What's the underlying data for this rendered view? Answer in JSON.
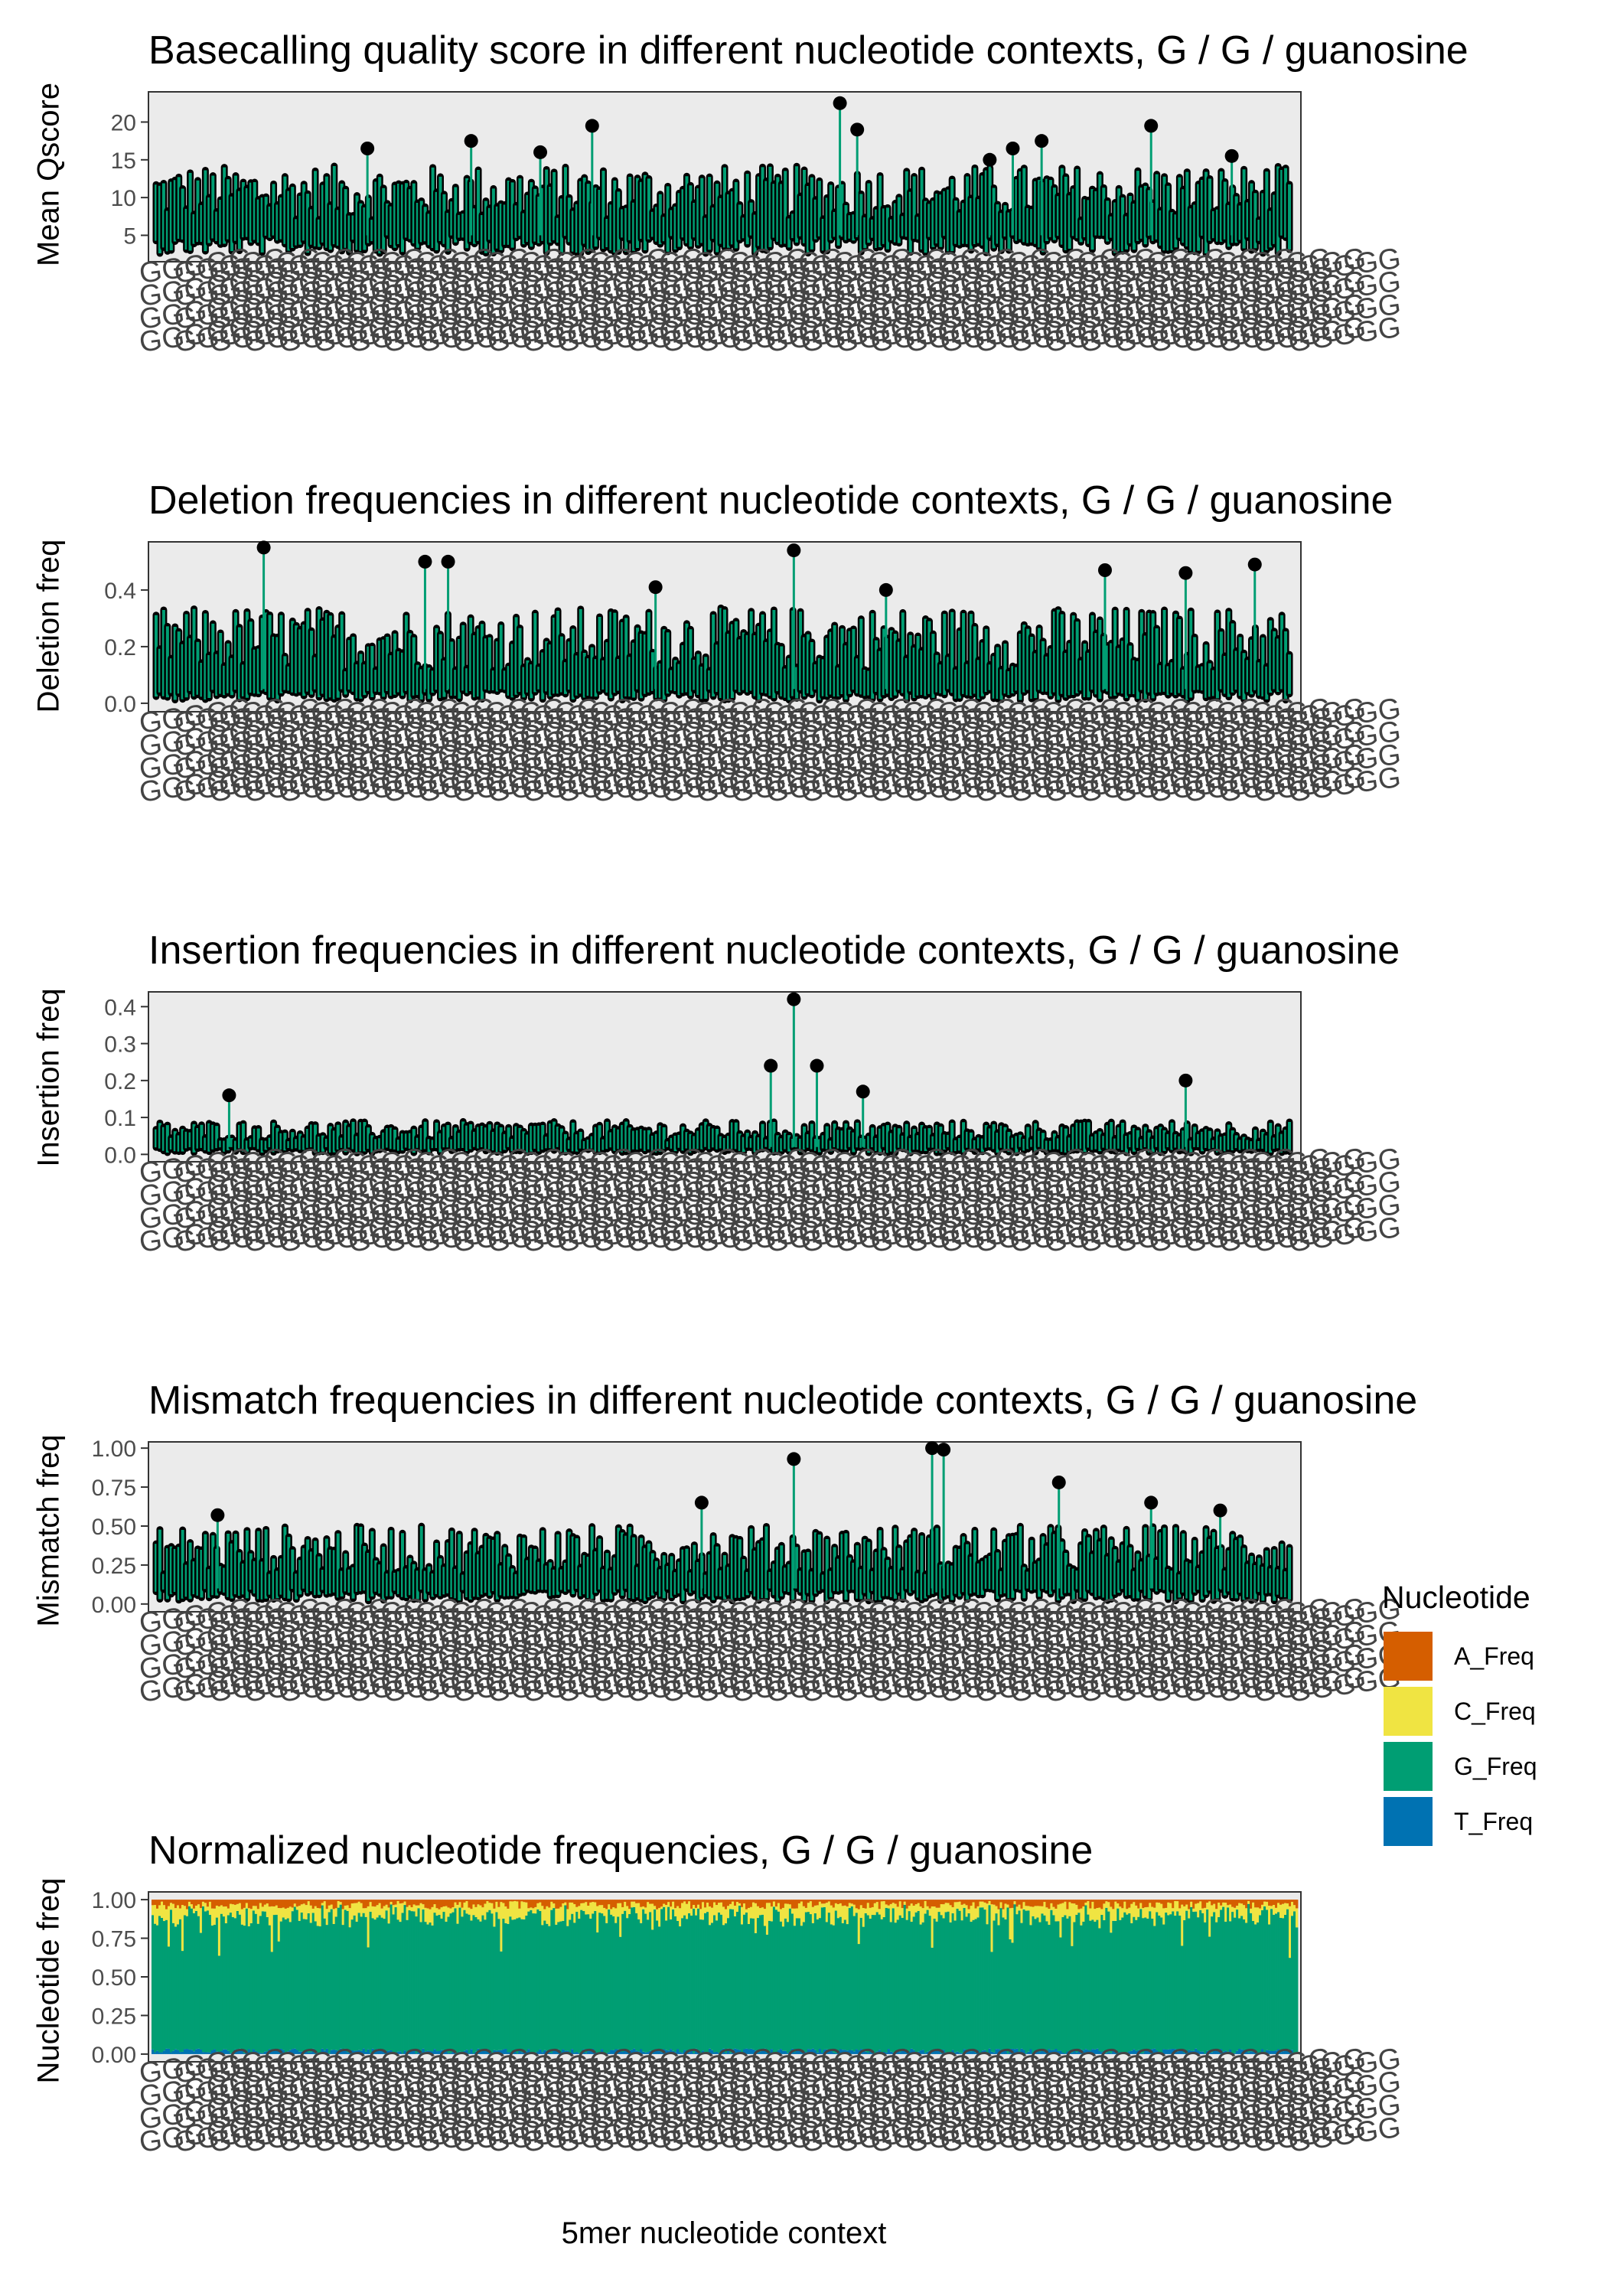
{
  "chart_data": [
    {
      "type": "line",
      "title": "Basecalling quality score in different nucleotide contexts, G / G / guanosine",
      "ylabel": "Mean Qscore",
      "xlabel": "",
      "ylim": [
        1.5,
        24
      ],
      "yticks": [
        5,
        10,
        15,
        20
      ],
      "ytick_labels": [
        "5",
        "10",
        "15",
        "20"
      ],
      "grid": false,
      "stats": {
        "baseline": 5,
        "typical_peak": 13,
        "max_peak": 23,
        "min": 2
      },
      "outliers": [
        {
          "x": 0.19,
          "y": 16.5
        },
        {
          "x": 0.28,
          "y": 17.5
        },
        {
          "x": 0.34,
          "y": 16
        },
        {
          "x": 0.385,
          "y": 19.5
        },
        {
          "x": 0.6,
          "y": 22.5
        },
        {
          "x": 0.615,
          "y": 19
        },
        {
          "x": 0.73,
          "y": 15
        },
        {
          "x": 0.75,
          "y": 16.5
        },
        {
          "x": 0.775,
          "y": 17.5
        },
        {
          "x": 0.87,
          "y": 19.5
        },
        {
          "x": 0.94,
          "y": 15.5
        }
      ]
    },
    {
      "type": "line",
      "title": "Deletion frequencies in different nucleotide contexts, G / G / guanosine",
      "ylabel": "Deletion freq",
      "xlabel": "",
      "ylim": [
        -0.03,
        0.57
      ],
      "yticks": [
        0.0,
        0.2,
        0.4
      ],
      "ytick_labels": [
        "0.0",
        "0.2",
        "0.4"
      ],
      "grid": false,
      "stats": {
        "baseline": 0.05,
        "typical_peak": 0.3,
        "max_peak": 0.55,
        "min": 0.0
      },
      "outliers": [
        {
          "x": 0.1,
          "y": 0.55
        },
        {
          "x": 0.24,
          "y": 0.5
        },
        {
          "x": 0.26,
          "y": 0.5
        },
        {
          "x": 0.44,
          "y": 0.41
        },
        {
          "x": 0.56,
          "y": 0.54
        },
        {
          "x": 0.64,
          "y": 0.4
        },
        {
          "x": 0.83,
          "y": 0.47
        },
        {
          "x": 0.9,
          "y": 0.46
        },
        {
          "x": 0.96,
          "y": 0.49
        }
      ]
    },
    {
      "type": "line",
      "title": "Insertion frequencies in different nucleotide contexts, G / G / guanosine",
      "ylabel": "Insertion freq",
      "xlabel": "",
      "ylim": [
        -0.02,
        0.44
      ],
      "yticks": [
        0.0,
        0.1,
        0.2,
        0.3,
        0.4
      ],
      "ytick_labels": [
        "0.0",
        "0.1",
        "0.2",
        "0.3",
        "0.4"
      ],
      "grid": false,
      "stats": {
        "baseline": 0.02,
        "typical_peak": 0.08,
        "max_peak": 0.42,
        "min": 0.0
      },
      "outliers": [
        {
          "x": 0.07,
          "y": 0.16
        },
        {
          "x": 0.54,
          "y": 0.24
        },
        {
          "x": 0.56,
          "y": 0.42
        },
        {
          "x": 0.58,
          "y": 0.24
        },
        {
          "x": 0.62,
          "y": 0.17
        },
        {
          "x": 0.9,
          "y": 0.2
        }
      ]
    },
    {
      "type": "line",
      "title": "Mismatch frequencies in different nucleotide contexts, G / G / guanosine",
      "ylabel": "Mismatch freq",
      "xlabel": "",
      "ylim": [
        -0.05,
        1.04
      ],
      "yticks": [
        0.0,
        0.25,
        0.5,
        0.75,
        1.0
      ],
      "ytick_labels": [
        "0.00",
        "0.25",
        "0.50",
        "0.75",
        "1.00"
      ],
      "grid": false,
      "stats": {
        "baseline": 0.1,
        "typical_peak": 0.45,
        "max_peak": 1.0,
        "min": 0.0
      },
      "outliers": [
        {
          "x": 0.06,
          "y": 0.57
        },
        {
          "x": 0.48,
          "y": 0.65
        },
        {
          "x": 0.56,
          "y": 0.93
        },
        {
          "x": 0.68,
          "y": 1.0
        },
        {
          "x": 0.69,
          "y": 0.99
        },
        {
          "x": 0.79,
          "y": 0.78
        },
        {
          "x": 0.87,
          "y": 0.65
        },
        {
          "x": 0.93,
          "y": 0.6
        }
      ]
    },
    {
      "type": "bar",
      "stacked": true,
      "title": "Normalized nucleotide frequencies, G / G / guanosine",
      "ylabel": "Nucleotide freq",
      "xlabel": "5mer nucleotide context",
      "ylim": [
        -0.05,
        1.05
      ],
      "yticks": [
        0.0,
        0.25,
        0.5,
        0.75,
        1.0
      ],
      "ytick_labels": [
        "0.00",
        "0.25",
        "0.50",
        "0.75",
        "1.00"
      ],
      "grid": false,
      "series_order": [
        "T_Freq",
        "G_Freq",
        "C_Freq",
        "A_Freq"
      ],
      "typical_fractions": {
        "A_Freq": 0.03,
        "C_Freq": 0.05,
        "G_Freq": 0.9,
        "T_Freq": 0.02
      }
    }
  ],
  "legend": {
    "title": "Nucleotide",
    "placement": "right",
    "items": [
      {
        "label": "A_Freq",
        "color": "#d55e00"
      },
      {
        "label": "C_Freq",
        "color": "#f0e442"
      },
      {
        "label": "G_Freq",
        "color": "#009e73"
      },
      {
        "label": "T_Freq",
        "color": "#0072b2"
      }
    ]
  },
  "colors": {
    "panel_bg": "#ebebeb",
    "line": "#009e73",
    "point": "#000000",
    "axis_text": "#4d4d4d",
    "tick_label_text": "#444444"
  },
  "x_tick_label_glyph": "GGGGG"
}
